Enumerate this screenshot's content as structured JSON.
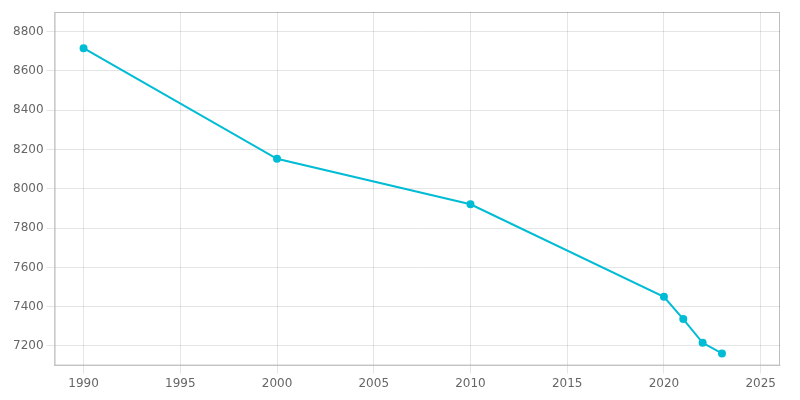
{
  "chart_data": {
    "type": "line",
    "x": [
      1990,
      2000,
      2010,
      2020,
      2021,
      2022,
      2023
    ],
    "values": [
      8716,
      8153,
      7921,
      7450,
      7337,
      7216,
      7162
    ],
    "color": "#00BCD4",
    "marker": "circle",
    "xlim": [
      1988.5,
      2026
    ],
    "ylim": [
      7100,
      8900
    ],
    "xticks": [
      1990,
      1995,
      2000,
      2005,
      2010,
      2015,
      2020,
      2025
    ],
    "yticks": [
      7200,
      7400,
      7600,
      7800,
      8000,
      8200,
      8400,
      8600,
      8800
    ],
    "grid": true
  }
}
